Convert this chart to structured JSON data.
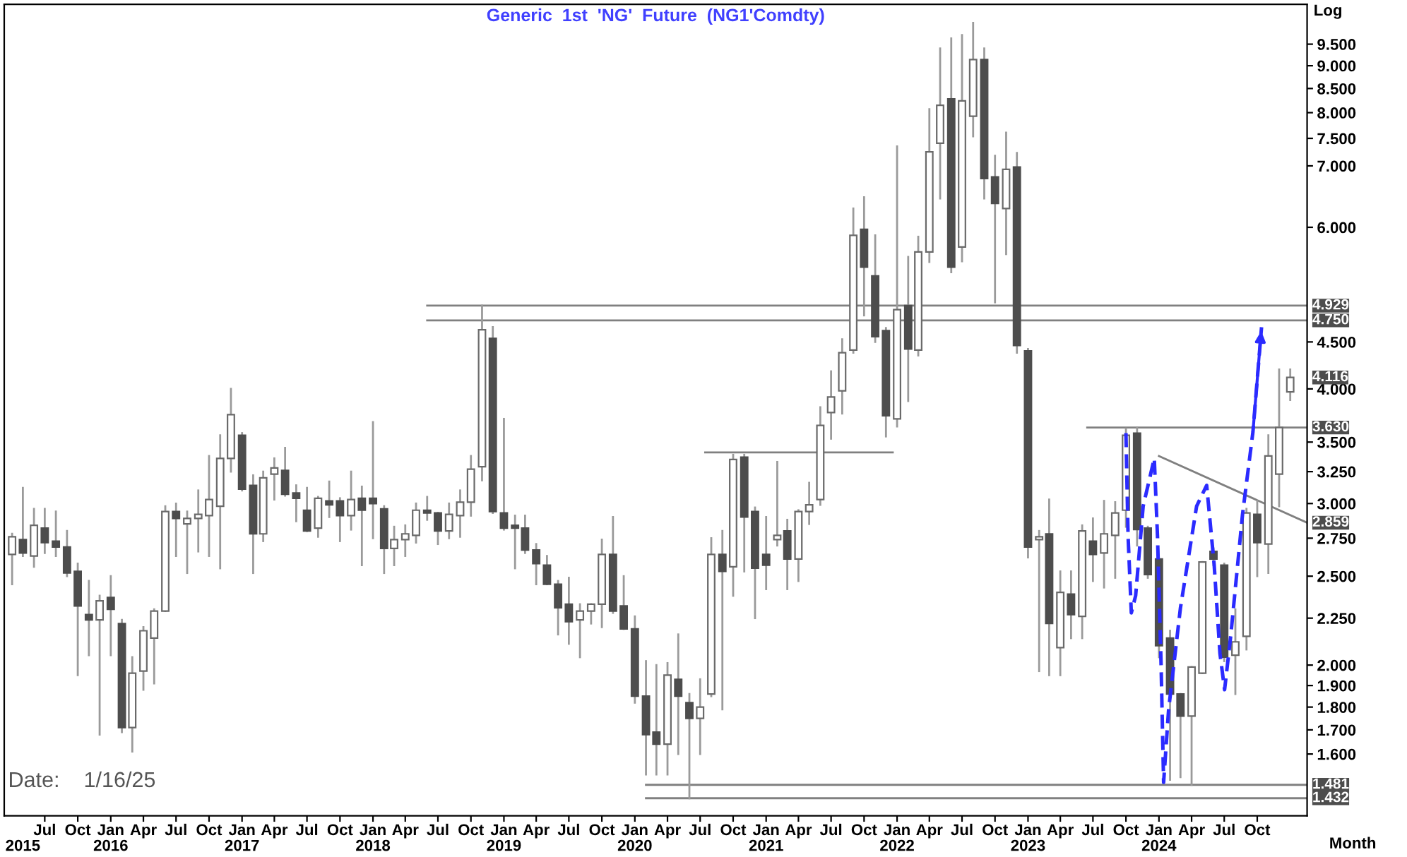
{
  "chart_data": {
    "type": "candlestick",
    "title": "Generic  1st  'NG'  Future  (NG1'Comdty)",
    "ylabel": "Log",
    "xlabel": "Month",
    "log": true,
    "grid": false,
    "legend": false,
    "xlim": [
      "2015-03-10",
      "2025-02-17"
    ],
    "ylim": [
      1.37,
      10.5
    ],
    "yticks": [
      {
        "value": 1.6,
        "label": "1.600"
      },
      {
        "value": 1.7,
        "label": "1.700"
      },
      {
        "value": 1.8,
        "label": "1.800"
      },
      {
        "value": 1.9,
        "label": "1.900"
      },
      {
        "value": 2.0,
        "label": "2.000"
      },
      {
        "value": 2.25,
        "label": "2.250"
      },
      {
        "value": 2.5,
        "label": "2.500"
      },
      {
        "value": 2.75,
        "label": "2.750"
      },
      {
        "value": 3.0,
        "label": "3.000"
      },
      {
        "value": 3.25,
        "label": "3.250"
      },
      {
        "value": 3.5,
        "label": "3.500"
      },
      {
        "value": 4.0,
        "label": "4.000"
      },
      {
        "value": 4.5,
        "label": "4.500"
      },
      {
        "value": 6.0,
        "label": "6.000"
      },
      {
        "value": 7.0,
        "label": "7.000"
      },
      {
        "value": 7.5,
        "label": "7.500"
      },
      {
        "value": 8.0,
        "label": "8.000"
      },
      {
        "value": 8.5,
        "label": "8.500"
      },
      {
        "value": 9.0,
        "label": "9.000"
      },
      {
        "value": 9.5,
        "label": "9.500"
      }
    ],
    "xticks": [
      {
        "value": "2015-07",
        "label": "Jul"
      },
      {
        "value": "2015-10",
        "label": "Oct"
      },
      {
        "value": "2016-01",
        "label": "Jan"
      },
      {
        "value": "2016-04",
        "label": "Apr"
      },
      {
        "value": "2016-07",
        "label": "Jul"
      },
      {
        "value": "2016-10",
        "label": "Oct"
      },
      {
        "value": "2017-01",
        "label": "Jan"
      },
      {
        "value": "2017-04",
        "label": "Apr"
      },
      {
        "value": "2017-07",
        "label": "Jul"
      },
      {
        "value": "2017-10",
        "label": "Oct"
      },
      {
        "value": "2018-01",
        "label": "Jan"
      },
      {
        "value": "2018-04",
        "label": "Apr"
      },
      {
        "value": "2018-07",
        "label": "Jul"
      },
      {
        "value": "2018-10",
        "label": "Oct"
      },
      {
        "value": "2019-01",
        "label": "Jan"
      },
      {
        "value": "2019-04",
        "label": "Apr"
      },
      {
        "value": "2019-07",
        "label": "Jul"
      },
      {
        "value": "2019-10",
        "label": "Oct"
      },
      {
        "value": "2020-01",
        "label": "Jan"
      },
      {
        "value": "2020-04",
        "label": "Apr"
      },
      {
        "value": "2020-07",
        "label": "Jul"
      },
      {
        "value": "2020-10",
        "label": "Oct"
      },
      {
        "value": "2021-01",
        "label": "Jan"
      },
      {
        "value": "2021-04",
        "label": "Apr"
      },
      {
        "value": "2021-07",
        "label": "Jul"
      },
      {
        "value": "2021-10",
        "label": "Oct"
      },
      {
        "value": "2022-01",
        "label": "Jan"
      },
      {
        "value": "2022-04",
        "label": "Apr"
      },
      {
        "value": "2022-07",
        "label": "Jul"
      },
      {
        "value": "2022-10",
        "label": "Oct"
      },
      {
        "value": "2023-01",
        "label": "Jan"
      },
      {
        "value": "2023-04",
        "label": "Apr"
      },
      {
        "value": "2023-07",
        "label": "Jul"
      },
      {
        "value": "2023-10",
        "label": "Oct"
      },
      {
        "value": "2024-01",
        "label": "Jan"
      },
      {
        "value": "2024-04",
        "label": "Apr"
      },
      {
        "value": "2024-07",
        "label": "Jul"
      },
      {
        "value": "2024-10",
        "label": "Oct"
      }
    ],
    "x2lim": [
      "2015-03-10",
      "2025-02-17"
    ],
    "x2ticks": [
      {
        "value": "2015-05",
        "label": "2015"
      },
      {
        "value": "2016-01",
        "label": "2016"
      },
      {
        "value": "2017-01",
        "label": "2017"
      },
      {
        "value": "2018-01",
        "label": "2018"
      },
      {
        "value": "2019-01",
        "label": "2019"
      },
      {
        "value": "2020-01",
        "label": "2020"
      },
      {
        "value": "2021-01",
        "label": "2021"
      },
      {
        "value": "2022-01",
        "label": "2022"
      },
      {
        "value": "2023-01",
        "label": "2023"
      },
      {
        "value": "2024-01",
        "label": "2024"
      }
    ],
    "x": [
      "2015-04",
      "2015-05",
      "2015-06",
      "2015-07",
      "2015-08",
      "2015-09",
      "2015-10",
      "2015-11",
      "2015-12",
      "2016-01",
      "2016-02",
      "2016-03",
      "2016-04",
      "2016-05",
      "2016-06",
      "2016-07",
      "2016-08",
      "2016-09",
      "2016-10",
      "2016-11",
      "2016-12",
      "2017-01",
      "2017-02",
      "2017-03",
      "2017-04",
      "2017-05",
      "2017-06",
      "2017-07",
      "2017-08",
      "2017-09",
      "2017-10",
      "2017-11",
      "2017-12",
      "2018-01",
      "2018-02",
      "2018-03",
      "2018-04",
      "2018-05",
      "2018-06",
      "2018-07",
      "2018-08",
      "2018-09",
      "2018-10",
      "2018-11",
      "2018-12",
      "2019-01",
      "2019-02",
      "2019-03",
      "2019-04",
      "2019-05",
      "2019-06",
      "2019-07",
      "2019-08",
      "2019-09",
      "2019-10",
      "2019-11",
      "2019-12",
      "2020-01",
      "2020-02",
      "2020-03",
      "2020-04",
      "2020-05",
      "2020-06",
      "2020-07",
      "2020-08",
      "2020-09",
      "2020-10",
      "2020-11",
      "2020-12",
      "2021-01",
      "2021-02",
      "2021-03",
      "2021-04",
      "2021-05",
      "2021-06",
      "2021-07",
      "2021-08",
      "2021-09",
      "2021-10",
      "2021-11",
      "2021-12",
      "2022-01",
      "2022-02",
      "2022-03",
      "2022-04",
      "2022-05",
      "2022-06",
      "2022-07",
      "2022-08",
      "2022-09",
      "2022-10",
      "2022-11",
      "2022-12",
      "2023-01",
      "2023-02",
      "2023-03",
      "2023-04",
      "2023-05",
      "2023-06",
      "2023-07",
      "2023-08",
      "2023-09",
      "2023-10",
      "2023-11",
      "2023-12",
      "2024-01",
      "2024-02",
      "2024-03",
      "2024-04",
      "2024-05",
      "2024-06",
      "2024-07",
      "2024-08",
      "2024-09",
      "2024-10",
      "2024-11",
      "2024-12",
      "2025-01"
    ],
    "ohlc": [
      [
        2.64,
        2.78,
        2.45,
        2.76
      ],
      [
        2.74,
        3.12,
        2.63,
        2.65
      ],
      [
        2.63,
        2.96,
        2.56,
        2.84
      ],
      [
        2.82,
        2.96,
        2.65,
        2.72
      ],
      [
        2.73,
        2.94,
        2.63,
        2.69
      ],
      [
        2.69,
        2.8,
        2.5,
        2.52
      ],
      [
        2.53,
        2.58,
        1.95,
        2.32
      ],
      [
        2.27,
        2.47,
        2.05,
        2.24
      ],
      [
        2.24,
        2.38,
        1.68,
        2.35
      ],
      [
        2.37,
        2.5,
        2.05,
        2.3
      ],
      [
        2.22,
        2.24,
        1.69,
        1.71
      ],
      [
        1.71,
        2.04,
        1.61,
        1.96
      ],
      [
        1.97,
        2.2,
        1.88,
        2.18
      ],
      [
        2.14,
        2.3,
        1.91,
        2.29
      ],
      [
        2.29,
        2.98,
        2.29,
        2.94
      ],
      [
        2.94,
        3.0,
        2.63,
        2.89
      ],
      [
        2.85,
        2.94,
        2.52,
        2.89
      ],
      [
        2.89,
        3.1,
        2.66,
        2.92
      ],
      [
        2.91,
        3.38,
        2.63,
        3.03
      ],
      [
        2.98,
        3.56,
        2.55,
        3.36
      ],
      [
        3.36,
        4.0,
        3.25,
        3.75
      ],
      [
        3.56,
        3.58,
        3.1,
        3.11
      ],
      [
        3.14,
        3.22,
        2.52,
        2.78
      ],
      [
        2.78,
        3.25,
        2.73,
        3.2
      ],
      [
        3.23,
        3.36,
        3.03,
        3.28
      ],
      [
        3.26,
        3.45,
        3.06,
        3.07
      ],
      [
        3.08,
        3.14,
        2.87,
        3.04
      ],
      [
        2.95,
        3.12,
        2.8,
        2.8
      ],
      [
        2.82,
        3.05,
        2.76,
        3.04
      ],
      [
        3.02,
        3.17,
        2.9,
        2.99
      ],
      [
        3.02,
        3.04,
        2.73,
        2.91
      ],
      [
        2.91,
        3.25,
        2.81,
        3.03
      ],
      [
        3.04,
        3.13,
        2.57,
        2.95
      ],
      [
        3.04,
        3.68,
        2.75,
        3.0
      ],
      [
        2.96,
        2.98,
        2.52,
        2.68
      ],
      [
        2.68,
        2.83,
        2.57,
        2.74
      ],
      [
        2.74,
        2.84,
        2.63,
        2.78
      ],
      [
        2.77,
        3.0,
        2.72,
        2.95
      ],
      [
        2.95,
        3.05,
        2.88,
        2.93
      ],
      [
        2.93,
        2.93,
        2.71,
        2.8
      ],
      [
        2.8,
        3.0,
        2.75,
        2.92
      ],
      [
        2.91,
        3.1,
        2.76,
        3.01
      ],
      [
        3.01,
        3.38,
        2.91,
        3.27
      ],
      [
        3.29,
        4.929,
        3.18,
        4.64
      ],
      [
        4.54,
        4.67,
        2.93,
        2.94
      ],
      [
        2.93,
        3.71,
        2.81,
        2.82
      ],
      [
        2.84,
        2.91,
        2.55,
        2.82
      ],
      [
        2.82,
        2.91,
        2.65,
        2.67
      ],
      [
        2.67,
        2.71,
        2.45,
        2.58
      ],
      [
        2.57,
        2.63,
        2.45,
        2.45
      ],
      [
        2.45,
        2.47,
        2.16,
        2.31
      ],
      [
        2.33,
        2.49,
        2.11,
        2.23
      ],
      [
        2.24,
        2.33,
        2.04,
        2.29
      ],
      [
        2.29,
        2.33,
        2.22,
        2.33
      ],
      [
        2.33,
        2.74,
        2.2,
        2.64
      ],
      [
        2.64,
        2.9,
        2.28,
        2.29
      ],
      [
        2.32,
        2.5,
        2.19,
        2.19
      ],
      [
        2.19,
        2.26,
        1.82,
        1.85
      ],
      [
        1.85,
        2.02,
        1.52,
        1.68
      ],
      [
        1.69,
        2.0,
        1.52,
        1.64
      ],
      [
        1.64,
        2.01,
        1.52,
        1.95
      ],
      [
        1.93,
        2.16,
        1.6,
        1.85
      ],
      [
        1.82,
        1.86,
        1.432,
        1.75
      ],
      [
        1.75,
        1.93,
        1.6,
        1.8
      ],
      [
        1.86,
        2.75,
        1.85,
        2.64
      ],
      [
        2.64,
        2.8,
        1.79,
        2.53
      ],
      [
        2.56,
        3.39,
        2.38,
        3.35
      ],
      [
        3.37,
        3.39,
        2.53,
        2.9
      ],
      [
        2.94,
        2.97,
        2.25,
        2.55
      ],
      [
        2.64,
        2.9,
        2.42,
        2.57
      ],
      [
        2.74,
        3.33,
        2.7,
        2.77
      ],
      [
        2.8,
        2.88,
        2.42,
        2.61
      ],
      [
        2.61,
        2.95,
        2.47,
        2.94
      ],
      [
        2.94,
        3.16,
        2.85,
        2.99
      ],
      [
        3.03,
        3.82,
        2.99,
        3.65
      ],
      [
        3.77,
        4.18,
        3.53,
        3.92
      ],
      [
        3.98,
        4.53,
        3.76,
        4.38
      ],
      [
        4.41,
        6.29,
        4.38,
        5.88
      ],
      [
        5.97,
        6.47,
        4.81,
        5.43
      ],
      [
        5.31,
        5.88,
        4.5,
        4.56
      ],
      [
        4.63,
        4.66,
        3.55,
        3.74
      ],
      [
        3.71,
        7.35,
        3.64,
        4.88
      ],
      [
        4.93,
        5.57,
        3.88,
        4.42
      ],
      [
        4.41,
        5.86,
        4.35,
        5.64
      ],
      [
        5.64,
        8.07,
        5.5,
        7.25
      ],
      [
        7.41,
        9.4,
        6.45,
        8.15
      ],
      [
        8.28,
        9.64,
        5.36,
        5.43
      ],
      [
        5.71,
        9.72,
        5.51,
        8.24
      ],
      [
        7.93,
        10.02,
        7.54,
        9.14
      ],
      [
        9.14,
        9.4,
        6.45,
        6.78
      ],
      [
        6.81,
        7.18,
        4.97,
        6.37
      ],
      [
        6.29,
        7.61,
        5.61,
        6.94
      ],
      [
        6.98,
        7.23,
        4.38,
        4.46
      ],
      [
        4.4,
        4.42,
        2.62,
        2.69
      ],
      [
        2.74,
        2.8,
        1.97,
        2.76
      ],
      [
        2.78,
        3.03,
        1.95,
        2.22
      ],
      [
        2.09,
        2.53,
        1.95,
        2.4
      ],
      [
        2.39,
        2.53,
        2.14,
        2.27
      ],
      [
        2.26,
        2.84,
        2.14,
        2.8
      ],
      [
        2.73,
        2.89,
        2.47,
        2.64
      ],
      [
        2.65,
        3.02,
        2.43,
        2.78
      ],
      [
        2.77,
        3.01,
        2.49,
        2.93
      ],
      [
        2.95,
        3.62,
        2.83,
        3.56
      ],
      [
        3.58,
        3.63,
        2.7,
        2.81
      ],
      [
        2.82,
        2.83,
        2.49,
        2.51
      ],
      [
        2.61,
        2.61,
        2.04,
        2.1
      ],
      [
        2.14,
        2.18,
        1.5,
        1.86
      ],
      [
        1.86,
        1.86,
        1.51,
        1.76
      ],
      [
        1.76,
        1.99,
        1.481,
        1.99
      ],
      [
        1.96,
        2.59,
        1.96,
        2.59
      ],
      [
        2.66,
        2.68,
        2.57,
        2.61
      ],
      [
        2.57,
        2.58,
        2.02,
        2.04
      ],
      [
        2.05,
        2.3,
        1.86,
        2.12
      ],
      [
        2.15,
        2.96,
        2.08,
        2.93
      ],
      [
        2.92,
        3.02,
        2.5,
        2.72
      ],
      [
        2.71,
        3.56,
        2.52,
        3.38
      ],
      [
        3.23,
        4.2,
        2.98,
        3.63
      ],
      [
        3.97,
        4.2,
        3.89,
        4.116
      ]
    ],
    "series": [
      {
        "type": "line",
        "color": "#808080",
        "x": [
          "2018-06",
          "2025-02-17"
        ],
        "values": [
          4.929,
          4.929
        ]
      },
      {
        "type": "line",
        "color": "#808080",
        "x": [
          "2018-06",
          "2025-02-17"
        ],
        "values": [
          4.75,
          4.75
        ]
      },
      {
        "type": "line",
        "color": "#808080",
        "x": [
          "2020-07-15",
          "2021-12-20"
        ],
        "values": [
          3.41,
          3.41
        ]
      },
      {
        "type": "line",
        "color": "#808080",
        "x": [
          "2023-06-15",
          "2025-02-17"
        ],
        "values": [
          3.63,
          3.63
        ]
      },
      {
        "type": "line",
        "color": "#808080",
        "x": [
          "2024-01-01",
          "2025-02-17"
        ],
        "values": [
          3.38,
          2.859
        ]
      },
      {
        "type": "line",
        "color": "#808080",
        "x": [
          "2020-02-01",
          "2025-02-17"
        ],
        "values": [
          1.481,
          1.481
        ]
      },
      {
        "type": "line",
        "color": "#808080",
        "x": [
          "2020-02-01",
          "2025-02-17"
        ],
        "values": [
          1.432,
          1.432
        ]
      },
      {
        "type": "line",
        "color": "#2b2bff",
        "line_style": "dashed",
        "x": [
          "2023-10-01",
          "2023-10-07",
          "2023-10-16",
          "2023-10-28",
          "2023-11-18",
          "2023-12-19",
          "2023-12-28",
          "2024-01-07",
          "2024-01-14",
          "2024-01-28",
          "2024-03-01",
          "2024-04-15",
          "2024-05-13",
          "2024-06-03",
          "2024-06-19",
          "2024-07-02",
          "2024-07-19",
          "2024-08-21",
          "2024-09-19",
          "2024-10-13"
        ],
        "values": [
          3.58,
          2.76,
          2.28,
          2.38,
          2.98,
          3.36,
          2.76,
          2.0,
          1.49,
          1.79,
          2.31,
          2.98,
          3.14,
          2.57,
          2.06,
          1.88,
          2.15,
          2.92,
          3.59,
          4.67
        ]
      }
    ],
    "annotations": [
      "Date:    1/16/25",
      {
        "text": "4.929",
        "x": "2025-02-17",
        "y": 4.929
      },
      {
        "text": "4.750",
        "x": "2025-02-17",
        "y": 4.75
      },
      {
        "text": "4.116",
        "x": "2025-01",
        "y": 4.116
      },
      {
        "text": "3.630",
        "x": "2025-02-17",
        "y": 3.63
      },
      {
        "text": "2.859",
        "x": "2025-02-17",
        "y": 2.859
      },
      {
        "text": "1.481",
        "x": "2025-02-17",
        "y": 1.481
      },
      {
        "text": "1.432",
        "x": "2025-02-17",
        "y": 1.432
      }
    ]
  }
}
